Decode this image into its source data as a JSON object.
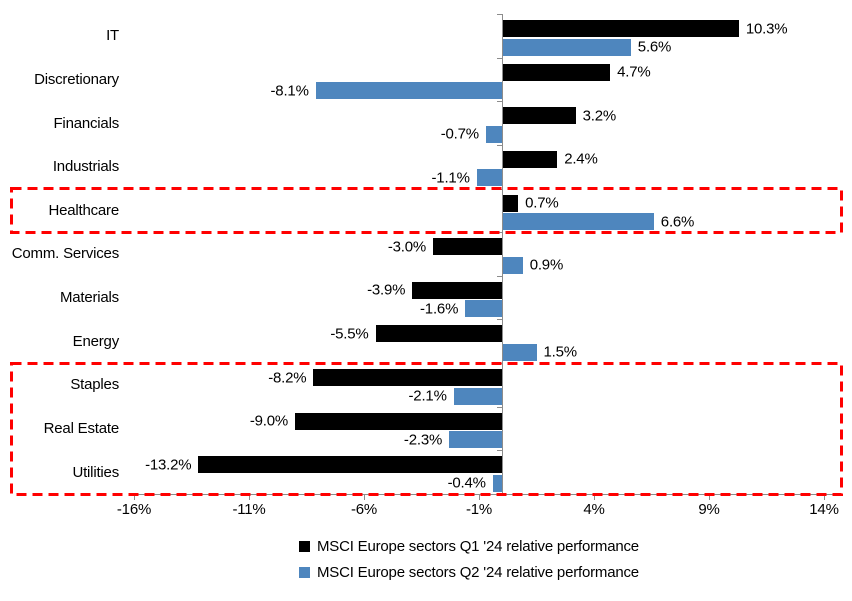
{
  "chart_data": {
    "type": "bar",
    "orientation": "horizontal",
    "title": "",
    "categories": [
      "IT",
      "Discretionary",
      "Financials",
      "Industrials",
      "Healthcare",
      "Comm. Services",
      "Materials",
      "Energy",
      "Staples",
      "Real Estate",
      "Utilities"
    ],
    "series": [
      {
        "name": "MSCI Europe sectors Q1 '24 relative performance",
        "key": "q1",
        "color": "#000000",
        "values": [
          10.3,
          4.7,
          3.2,
          2.4,
          0.7,
          -3.0,
          -3.9,
          -5.5,
          -8.2,
          -9.0,
          -13.2
        ],
        "labels": [
          "10.3%",
          "4.7%",
          "3.2%",
          "2.4%",
          "0.7%",
          "-3.0%",
          "-3.9%",
          "-5.5%",
          "-8.2%",
          "-9.0%",
          "-13.2%"
        ]
      },
      {
        "name": "MSCI Europe sectors Q2 '24 relative performance",
        "key": "q2",
        "color": "#4E86BE",
        "values": [
          5.6,
          -8.1,
          -0.7,
          -1.1,
          6.6,
          0.9,
          -1.6,
          1.5,
          -2.1,
          -2.3,
          -0.4
        ],
        "labels": [
          "5.6%",
          "-8.1%",
          "-0.7%",
          "-1.1%",
          "6.6%",
          "0.9%",
          "-1.6%",
          "1.5%",
          "-2.1%",
          "-2.3%",
          "-0.4%"
        ]
      }
    ],
    "x_axis": {
      "tick_labels": [
        "-16%",
        "-11%",
        "-6%",
        "-1%",
        "4%",
        "9%",
        "14%"
      ],
      "tick_values": [
        -16,
        -11,
        -6,
        -1,
        4,
        9,
        14
      ],
      "range": [
        -16,
        14
      ]
    },
    "grid": false,
    "legend_position": "bottom-left-offset",
    "highlights": [
      {
        "sectors": [
          "Healthcare"
        ],
        "color": "#FF0000",
        "style": "dashed"
      },
      {
        "sectors": [
          "Staples",
          "Real Estate",
          "Utilities"
        ],
        "color": "#FF0000",
        "style": "dashed"
      }
    ],
    "colors": {
      "axis": "#8c8c8c",
      "highlight": "#FF0000"
    }
  }
}
